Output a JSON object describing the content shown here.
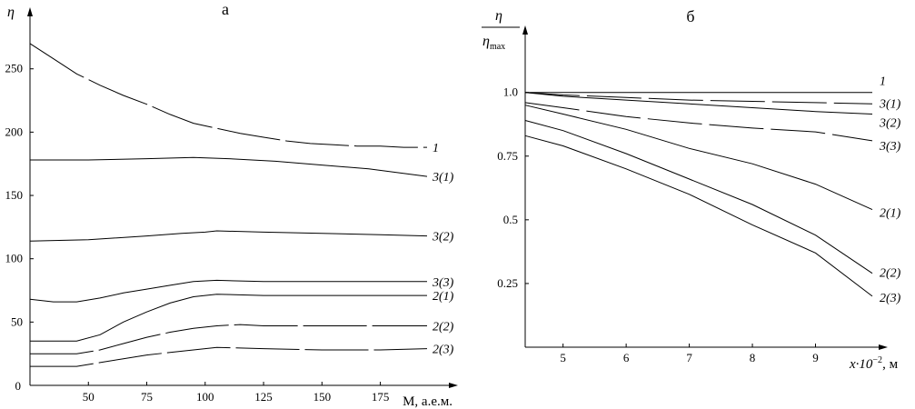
{
  "chart_data": [
    {
      "panel": "а",
      "type": "line",
      "ylabel": "η",
      "xlabel": "M, а.е.м.",
      "x_ticks": [
        50,
        75,
        100,
        125,
        150,
        175
      ],
      "y_ticks": [
        50,
        100,
        150,
        200,
        250
      ],
      "origin_label": "0",
      "xlim": [
        25,
        195
      ],
      "ylim": [
        0,
        290
      ],
      "series": [
        {
          "name": "1",
          "dashed": true,
          "x": [
            25,
            35,
            45,
            55,
            65,
            75,
            85,
            95,
            105,
            115,
            125,
            135,
            145,
            155,
            165,
            175,
            185,
            195
          ],
          "y": [
            270,
            258,
            246,
            237,
            229,
            222,
            214,
            207,
            203,
            199,
            196,
            193,
            191,
            190,
            189,
            189,
            188,
            188
          ]
        },
        {
          "name": "3(1)",
          "dashed": false,
          "x": [
            25,
            50,
            75,
            95,
            110,
            130,
            150,
            170,
            195
          ],
          "y": [
            178,
            178,
            179,
            180,
            179,
            177,
            174,
            171,
            165
          ]
        },
        {
          "name": "3(2)",
          "dashed": false,
          "x": [
            25,
            50,
            75,
            90,
            100,
            105,
            125,
            150,
            175,
            195
          ],
          "y": [
            114,
            115,
            118,
            120,
            121,
            122,
            121,
            120,
            119,
            118
          ]
        },
        {
          "name": "3(3)",
          "dashed": false,
          "x": [
            25,
            35,
            45,
            55,
            65,
            75,
            85,
            95,
            105,
            125,
            150,
            175,
            195
          ],
          "y": [
            68,
            66,
            66,
            69,
            73,
            76,
            79,
            82,
            83,
            82,
            82,
            82,
            82
          ]
        },
        {
          "name": "2(1)",
          "dashed": false,
          "x": [
            25,
            35,
            45,
            55,
            65,
            75,
            85,
            95,
            105,
            125,
            150,
            175,
            195
          ],
          "y": [
            35,
            35,
            35,
            40,
            50,
            58,
            65,
            70,
            72,
            71,
            71,
            71,
            71
          ]
        },
        {
          "name": "2(2)",
          "dashed": true,
          "x": [
            25,
            35,
            45,
            55,
            65,
            75,
            85,
            95,
            105,
            115,
            125,
            150,
            175,
            195
          ],
          "y": [
            25,
            25,
            25,
            28,
            33,
            38,
            42,
            45,
            47,
            48,
            47,
            47,
            47,
            47
          ]
        },
        {
          "name": "2(3)",
          "dashed": true,
          "x": [
            25,
            35,
            45,
            55,
            65,
            75,
            85,
            95,
            105,
            125,
            150,
            175,
            195
          ],
          "y": [
            15,
            15,
            15,
            18,
            21,
            24,
            26,
            28,
            30,
            29,
            28,
            28,
            29
          ]
        }
      ]
    },
    {
      "panel": "б",
      "type": "line",
      "ylabel_num": "η",
      "ylabel_den": "η",
      "ylabel_den_sub": "max",
      "xlabel_main": "x·10",
      "xlabel_exp": "−2",
      "xlabel_unit": ", м",
      "x_ticks": [
        5,
        6,
        7,
        8,
        9
      ],
      "y_ticks": [
        "1.0",
        "0.75",
        "0.5",
        "0.25"
      ],
      "xlim": [
        4.4,
        9.9
      ],
      "ylim": [
        0,
        1.22
      ],
      "series": [
        {
          "name": "1",
          "dashed": false,
          "x": [
            4.4,
            9.9
          ],
          "y": [
            1.0,
            1.0
          ]
        },
        {
          "name": "3(1)",
          "dashed": true,
          "x": [
            4.4,
            5.0,
            6.0,
            7.0,
            8.0,
            9.0,
            9.9
          ],
          "y": [
            1.0,
            0.99,
            0.98,
            0.97,
            0.965,
            0.96,
            0.955
          ]
        },
        {
          "name": "3(2)",
          "dashed": false,
          "x": [
            4.4,
            5.0,
            6.0,
            7.0,
            8.0,
            9.0,
            9.9
          ],
          "y": [
            1.0,
            0.985,
            0.97,
            0.955,
            0.94,
            0.925,
            0.915
          ]
        },
        {
          "name": "3(3)",
          "dashed": true,
          "x": [
            4.4,
            5.0,
            6.0,
            7.0,
            8.0,
            9.0,
            9.9
          ],
          "y": [
            0.96,
            0.94,
            0.905,
            0.88,
            0.86,
            0.845,
            0.81
          ]
        },
        {
          "name": "2(1)",
          "dashed": false,
          "x": [
            4.4,
            5.0,
            6.0,
            7.0,
            8.0,
            9.0,
            9.9
          ],
          "y": [
            0.95,
            0.915,
            0.855,
            0.78,
            0.72,
            0.64,
            0.54
          ]
        },
        {
          "name": "2(2)",
          "dashed": false,
          "x": [
            4.4,
            5.0,
            6.0,
            7.0,
            8.0,
            9.0,
            9.9
          ],
          "y": [
            0.89,
            0.85,
            0.76,
            0.66,
            0.56,
            0.44,
            0.29
          ]
        },
        {
          "name": "2(3)",
          "dashed": false,
          "x": [
            4.4,
            5.0,
            6.0,
            7.0,
            8.0,
            9.0,
            9.9
          ],
          "y": [
            0.83,
            0.79,
            0.7,
            0.6,
            0.48,
            0.37,
            0.2
          ]
        }
      ]
    }
  ]
}
